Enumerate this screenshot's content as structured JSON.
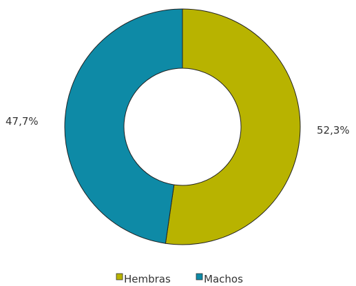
{
  "chart_data": {
    "type": "pie",
    "title": "",
    "categories": [
      "Hembras",
      "Machos"
    ],
    "values": [
      52.3,
      47.7
    ],
    "labels": [
      "52,3%",
      "47,7%"
    ],
    "colors": [
      "#b8b300",
      "#0e8aa6"
    ],
    "donut": true,
    "legend": {
      "position": "bottom",
      "items": [
        {
          "label": "Hembras",
          "color": "#b8b300"
        },
        {
          "label": "Machos",
          "color": "#0e8aa6"
        }
      ]
    }
  }
}
